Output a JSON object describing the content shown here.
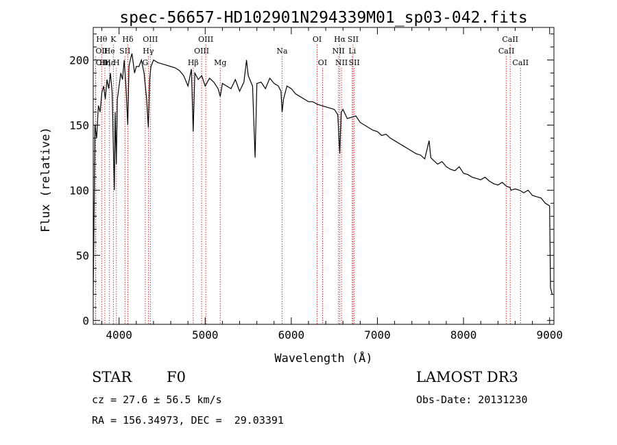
{
  "chart_data": {
    "type": "line",
    "title": "spec-56657-HD102901N294339M01_sp03-042.fits",
    "xlabel": "Wavelength (Å)",
    "ylabel": "Flux (relative)",
    "xlim": [
      3700,
      9050
    ],
    "ylim": [
      -3,
      225
    ],
    "xticks": [
      4000,
      5000,
      6000,
      7000,
      8000,
      9000
    ],
    "yticks": [
      0,
      50,
      100,
      150,
      200
    ],
    "line_color": "#000000",
    "marker_color": "#cc3333",
    "spectrum": {
      "x": [
        3700,
        3720,
        3740,
        3760,
        3780,
        3800,
        3820,
        3840,
        3860,
        3880,
        3900,
        3920,
        3935,
        3945,
        3955,
        3968,
        3980,
        4000,
        4020,
        4040,
        4060,
        4080,
        4101,
        4115,
        4130,
        4150,
        4180,
        4200,
        4230,
        4260,
        4290,
        4320,
        4340,
        4355,
        4370,
        4400,
        4450,
        4500,
        4550,
        4600,
        4650,
        4700,
        4750,
        4800,
        4840,
        4861,
        4880,
        4920,
        4960,
        5000,
        5050,
        5100,
        5150,
        5175,
        5200,
        5250,
        5300,
        5350,
        5400,
        5450,
        5480,
        5500,
        5550,
        5580,
        5600,
        5650,
        5700,
        5750,
        5800,
        5850,
        5880,
        5893,
        5910,
        5950,
        6000,
        6050,
        6100,
        6150,
        6200,
        6250,
        6300,
        6350,
        6400,
        6450,
        6500,
        6540,
        6563,
        6580,
        6600,
        6650,
        6700,
        6750,
        6800,
        6850,
        6900,
        6950,
        7000,
        7050,
        7100,
        7150,
        7200,
        7250,
        7300,
        7350,
        7400,
        7450,
        7500,
        7550,
        7600,
        7620,
        7650,
        7700,
        7750,
        7800,
        7850,
        7900,
        7950,
        8000,
        8050,
        8100,
        8150,
        8200,
        8250,
        8300,
        8350,
        8400,
        8450,
        8500,
        8542,
        8550,
        8600,
        8650,
        8700,
        8750,
        8800,
        8850,
        8900,
        8950,
        9000,
        9010,
        9030
      ],
      "y": [
        20,
        150,
        140,
        165,
        160,
        175,
        180,
        170,
        185,
        178,
        190,
        175,
        130,
        100,
        160,
        120,
        170,
        180,
        190,
        185,
        200,
        180,
        150,
        195,
        200,
        205,
        190,
        195,
        195,
        200,
        190,
        170,
        148,
        185,
        195,
        200,
        198,
        197,
        196,
        195,
        194,
        192,
        188,
        180,
        193,
        145,
        190,
        185,
        188,
        180,
        186,
        183,
        178,
        172,
        182,
        180,
        178,
        185,
        176,
        183,
        200,
        188,
        180,
        125,
        182,
        183,
        178,
        186,
        182,
        180,
        176,
        160,
        170,
        180,
        178,
        174,
        172,
        170,
        168,
        168,
        166,
        165,
        164,
        163,
        162,
        158,
        128,
        160,
        162,
        155,
        156,
        157,
        152,
        150,
        148,
        146,
        145,
        142,
        143,
        140,
        138,
        136,
        134,
        132,
        130,
        128,
        127,
        124,
        138,
        125,
        123,
        120,
        122,
        118,
        116,
        115,
        118,
        113,
        112,
        110,
        109,
        108,
        110,
        107,
        105,
        104,
        106,
        103,
        102,
        100,
        101,
        100,
        98,
        100,
        96,
        95,
        94,
        90,
        88,
        25,
        20
      ]
    },
    "lines": [
      {
        "label": "Hθ",
        "x": 3798,
        "row": 0,
        "anchor": "middle"
      },
      {
        "label": "OII",
        "x": 3727,
        "row": 1,
        "anchor": "start"
      },
      {
        "label": "OII",
        "x": 3729,
        "row": 2,
        "anchor": "start"
      },
      {
        "label": "Hε",
        "x": 3889,
        "row": 2,
        "anchor": "middle"
      },
      {
        "label": "He",
        "x": 3889,
        "row": 1,
        "anchor": "middle"
      },
      {
        "label": "K",
        "x": 3934,
        "row": 0,
        "anchor": "middle"
      },
      {
        "label": "Hη",
        "x": 3835,
        "row": 2,
        "anchor": "middle"
      },
      {
        "label": "SII",
        "x": 4068,
        "row": 1,
        "anchor": "middle"
      },
      {
        "label": "H",
        "x": 3969,
        "row": 2,
        "anchor": "middle"
      },
      {
        "label": "Hδ",
        "x": 4102,
        "row": 0,
        "anchor": "middle"
      },
      {
        "label": "OIII",
        "x": 4363,
        "row": 0,
        "anchor": "middle"
      },
      {
        "label": "Hγ",
        "x": 4340,
        "row": 1,
        "anchor": "middle"
      },
      {
        "label": "G",
        "x": 4304,
        "row": 2,
        "anchor": "middle"
      },
      {
        "label": "Hβ",
        "x": 4861,
        "row": 2,
        "anchor": "middle"
      },
      {
        "label": "OIII",
        "x": 4959,
        "row": 1,
        "anchor": "middle"
      },
      {
        "label": "OIII",
        "x": 5007,
        "row": 0,
        "anchor": "middle"
      },
      {
        "label": "Mg",
        "x": 5175,
        "row": 2,
        "anchor": "middle"
      },
      {
        "label": "Na",
        "x": 5893,
        "row": 1,
        "anchor": "middle"
      },
      {
        "label": "OI",
        "x": 6300,
        "row": 0,
        "anchor": "middle"
      },
      {
        "label": "OI",
        "x": 6363,
        "row": 2,
        "anchor": "middle"
      },
      {
        "label": "Hα",
        "x": 6563,
        "row": 0,
        "anchor": "middle"
      },
      {
        "label": "NII",
        "x": 6548,
        "row": 1,
        "anchor": "middle"
      },
      {
        "label": "NII",
        "x": 6583,
        "row": 2,
        "anchor": "middle"
      },
      {
        "label": "SII",
        "x": 6717,
        "row": 0,
        "anchor": "middle"
      },
      {
        "label": "Li",
        "x": 6708,
        "row": 1,
        "anchor": "middle"
      },
      {
        "label": "SII",
        "x": 6731,
        "row": 2,
        "anchor": "middle"
      },
      {
        "label": "CaII",
        "x": 8542,
        "row": 0,
        "anchor": "middle"
      },
      {
        "label": "CaII",
        "x": 8498,
        "row": 1,
        "anchor": "middle"
      },
      {
        "label": "CaII",
        "x": 8662,
        "row": 2,
        "anchor": "middle"
      }
    ]
  },
  "info": {
    "class": "STAR",
    "subclass": "F0",
    "survey": "LAMOST DR3",
    "cz": "cz = 27.6 ± 56.5 km/s",
    "obs_date": "Obs-Date: 20131230",
    "radec": "RA = 156.34973, DEC =  29.03391"
  }
}
